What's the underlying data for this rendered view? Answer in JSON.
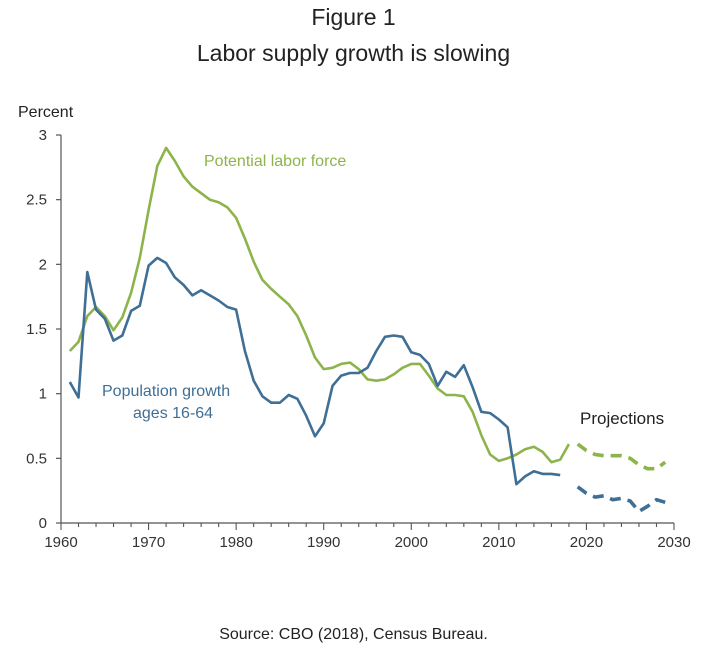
{
  "figure": {
    "number": "Figure 1",
    "title": "Labor supply growth is slowing",
    "source": "Source: CBO (2018), Census Bureau."
  },
  "colors": {
    "labor": "#8db44a",
    "population": "#3f6f95",
    "axis": "#555555"
  },
  "chart_data": {
    "type": "line",
    "title": "Labor supply growth is slowing",
    "ylabel": "Percent",
    "xlabel": "",
    "xlim": [
      1960,
      2030
    ],
    "ylim": [
      0,
      3
    ],
    "xticks": [
      1960,
      1970,
      1980,
      1990,
      2000,
      2010,
      2020,
      2030
    ],
    "yticks": [
      0,
      0.5,
      1,
      1.5,
      2,
      2.5,
      3
    ],
    "ytick_labels": [
      "0",
      "0.5",
      "1",
      "1.5",
      "2",
      "2.5",
      "3"
    ],
    "grid": false,
    "annotations": {
      "labor": "Potential labor force",
      "population_line1": "Population growth",
      "population_line2": "ages 16-64",
      "projections": "Projections"
    },
    "series": [
      {
        "key": "labor",
        "name": "Potential labor force",
        "style": "solid",
        "x": [
          1961,
          1962,
          1963,
          1964,
          1965,
          1966,
          1967,
          1968,
          1969,
          1970,
          1971,
          1972,
          1973,
          1974,
          1975,
          1976,
          1977,
          1978,
          1979,
          1980,
          1981,
          1982,
          1983,
          1984,
          1985,
          1986,
          1987,
          1988,
          1989,
          1990,
          1991,
          1992,
          1993,
          1994,
          1995,
          1996,
          1997,
          1998,
          1999,
          2000,
          2001,
          2002,
          2003,
          2004,
          2005,
          2006,
          2007,
          2008,
          2009,
          2010,
          2011,
          2012,
          2013,
          2014,
          2015,
          2016,
          2017,
          2018
        ],
        "y": [
          1.33,
          1.4,
          1.6,
          1.67,
          1.6,
          1.49,
          1.59,
          1.78,
          2.05,
          2.42,
          2.76,
          2.9,
          2.8,
          2.68,
          2.6,
          2.55,
          2.5,
          2.48,
          2.44,
          2.36,
          2.2,
          2.02,
          1.88,
          1.81,
          1.75,
          1.69,
          1.6,
          1.45,
          1.28,
          1.19,
          1.2,
          1.23,
          1.24,
          1.19,
          1.11,
          1.1,
          1.11,
          1.15,
          1.2,
          1.23,
          1.23,
          1.14,
          1.04,
          0.99,
          0.99,
          0.98,
          0.86,
          0.68,
          0.53,
          0.48,
          0.5,
          0.53,
          0.57,
          0.59,
          0.55,
          0.47,
          0.49,
          0.61
        ]
      },
      {
        "key": "labor_proj",
        "name": "",
        "style": "dashed",
        "x": [
          2019,
          2020,
          2021,
          2022,
          2023,
          2024,
          2025,
          2026,
          2027,
          2028,
          2029
        ],
        "y": [
          0.61,
          0.56,
          0.53,
          0.52,
          0.52,
          0.52,
          0.5,
          0.45,
          0.42,
          0.42,
          0.47
        ]
      },
      {
        "key": "population",
        "name": "Population growth ages 16-64",
        "style": "solid",
        "x": [
          1961,
          1962,
          1963,
          1964,
          1965,
          1966,
          1967,
          1968,
          1969,
          1970,
          1971,
          1972,
          1973,
          1974,
          1975,
          1976,
          1977,
          1978,
          1979,
          1980,
          1981,
          1982,
          1983,
          1984,
          1985,
          1986,
          1987,
          1988,
          1989,
          1990,
          1991,
          1992,
          1993,
          1994,
          1995,
          1996,
          1997,
          1998,
          1999,
          2000,
          2001,
          2002,
          2003,
          2004,
          2005,
          2006,
          2007,
          2008,
          2009,
          2010,
          2011,
          2012,
          2013,
          2014,
          2015,
          2016,
          2017
        ],
        "y": [
          1.09,
          0.97,
          1.94,
          1.65,
          1.58,
          1.41,
          1.45,
          1.64,
          1.68,
          1.99,
          2.05,
          2.01,
          1.9,
          1.84,
          1.76,
          1.8,
          1.76,
          1.72,
          1.67,
          1.65,
          1.33,
          1.1,
          0.98,
          0.93,
          0.93,
          0.99,
          0.96,
          0.83,
          0.67,
          0.77,
          1.06,
          1.14,
          1.16,
          1.16,
          1.2,
          1.33,
          1.44,
          1.45,
          1.44,
          1.32,
          1.3,
          1.23,
          1.06,
          1.17,
          1.13,
          1.22,
          1.05,
          0.86,
          0.85,
          0.8,
          0.74,
          0.3,
          0.36,
          0.4,
          0.38,
          0.38,
          0.37
        ]
      },
      {
        "key": "population_proj",
        "name": "",
        "style": "dashed",
        "x": [
          2019,
          2020,
          2021,
          2022,
          2023,
          2024,
          2025,
          2026,
          2027,
          2028,
          2029
        ],
        "y": [
          0.28,
          0.23,
          0.2,
          0.21,
          0.18,
          0.19,
          0.17,
          0.09,
          0.13,
          0.18,
          0.16
        ]
      }
    ]
  }
}
